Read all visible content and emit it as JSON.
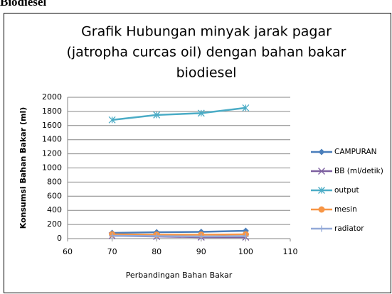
{
  "header": {
    "text": "Biodiesel"
  },
  "chart_data": {
    "type": "line",
    "title": [
      "Grafik Hubungan minyak jarak pagar",
      "(jatropha curcas oil) dengan bahan bakar",
      "biodiesel"
    ],
    "x_label": "Perbandingan Bahan Bakar",
    "y_label": "Konsumsi Bahan Bakar (ml)",
    "x": [
      70,
      80,
      90,
      100
    ],
    "xlim": [
      60,
      110
    ],
    "xticks": [
      60,
      70,
      80,
      90,
      100,
      110
    ],
    "ylim": [
      0,
      2000
    ],
    "yticks": [
      0,
      200,
      400,
      600,
      800,
      1000,
      1200,
      1400,
      1600,
      1800,
      2000
    ],
    "grid": true,
    "legend": "right",
    "series": [
      {
        "name": "CAMPURAN",
        "color": "#4a7ebb",
        "marker": "diamond",
        "values": [
          80,
          90,
          95,
          110
        ]
      },
      {
        "name": "BB (ml/detik)",
        "color": "#7d60a0",
        "marker": "x",
        "values": [
          40,
          30,
          20,
          20
        ]
      },
      {
        "name": "output",
        "color": "#4bacc6",
        "marker": "asterisk",
        "values": [
          1680,
          1750,
          1775,
          1850
        ]
      },
      {
        "name": "mesin",
        "color": "#f79646",
        "marker": "circle",
        "values": [
          60,
          55,
          55,
          60
        ]
      },
      {
        "name": "radiator",
        "color": "#93a9d8",
        "marker": "plus",
        "values": [
          40,
          35,
          30,
          35
        ]
      }
    ]
  }
}
